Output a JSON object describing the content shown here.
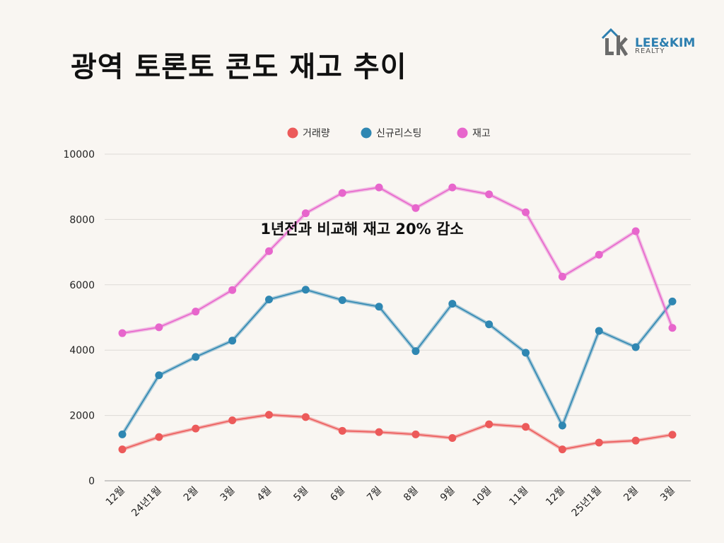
{
  "title": "광역 토론토 콘도 재고 추이",
  "logo": {
    "line1": "LEE&KIM",
    "line2": "REALTY"
  },
  "chart_data": {
    "type": "line",
    "categories": [
      "12월",
      "24년1월",
      "2월",
      "3월",
      "4월",
      "5월",
      "6월",
      "7월",
      "8월",
      "9월",
      "10월",
      "11월",
      "12월",
      "25년1월",
      "2월",
      "3월"
    ],
    "series": [
      {
        "name": "거래량",
        "color": "#ec5a5a",
        "values": [
          960,
          1340,
          1600,
          1850,
          2020,
          1950,
          1530,
          1490,
          1420,
          1310,
          1730,
          1650,
          960,
          1170,
          1230,
          1410
        ]
      },
      {
        "name": "신규리스팅",
        "color": "#2f87b2",
        "values": [
          1420,
          3230,
          3790,
          4290,
          5550,
          5850,
          5530,
          5330,
          3970,
          5420,
          4790,
          3920,
          1690,
          4590,
          4090,
          5490
        ]
      },
      {
        "name": "재고",
        "color": "#e766cc",
        "values": [
          4520,
          4700,
          5180,
          5840,
          7030,
          8190,
          8810,
          8980,
          8350,
          8980,
          8770,
          8220,
          6250,
          6920,
          7640,
          4680
        ]
      }
    ],
    "ylim": [
      0,
      10000
    ],
    "yticks": [
      "0",
      "2000",
      "4000",
      "6000",
      "8000",
      "10000"
    ],
    "legend_position": "top-center",
    "grid": true,
    "annotation": "1년전과 비교해 재고 20% 감소"
  }
}
